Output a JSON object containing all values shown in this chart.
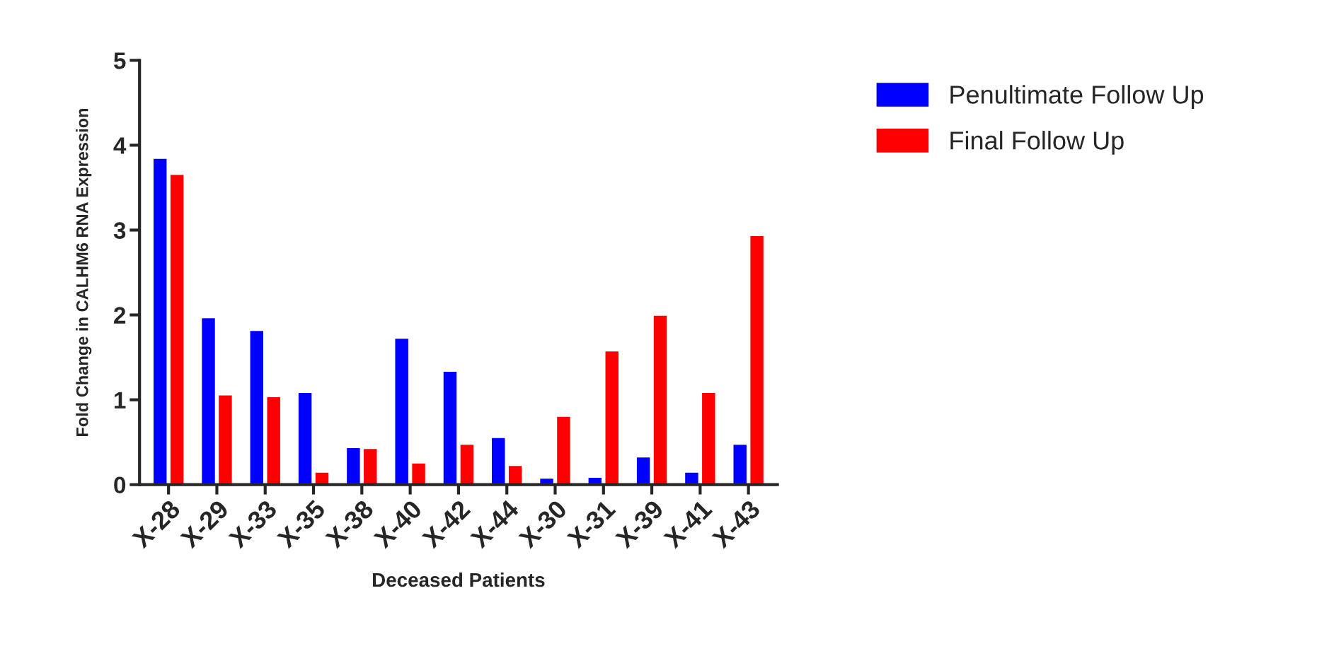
{
  "chart_data": {
    "type": "bar",
    "xlabel": "Deceased Patients",
    "ylabel": "Fold Change in CALHM6 RNA Expression",
    "categories": [
      "X-28",
      "X-29",
      "X-33",
      "X-35",
      "X-38",
      "X-40",
      "X-42",
      "X-44",
      "X-30",
      "X-31",
      "X-39",
      "X-41",
      "X-43"
    ],
    "series": [
      {
        "name": "Penultimate Follow Up",
        "color": "#0000ff",
        "values": [
          3.84,
          1.96,
          1.81,
          1.08,
          0.43,
          1.72,
          1.33,
          0.55,
          0.07,
          0.08,
          0.32,
          0.14,
          0.47
        ]
      },
      {
        "name": "Final Follow Up",
        "color": "#ff0000",
        "values": [
          3.65,
          1.05,
          1.03,
          0.14,
          0.42,
          0.25,
          0.47,
          0.22,
          0.8,
          1.57,
          1.99,
          1.08,
          2.93
        ]
      }
    ],
    "ylim": [
      0,
      5
    ],
    "yticks": [
      0,
      1,
      2,
      3,
      4,
      5
    ],
    "grid": false,
    "legend": "top right"
  }
}
